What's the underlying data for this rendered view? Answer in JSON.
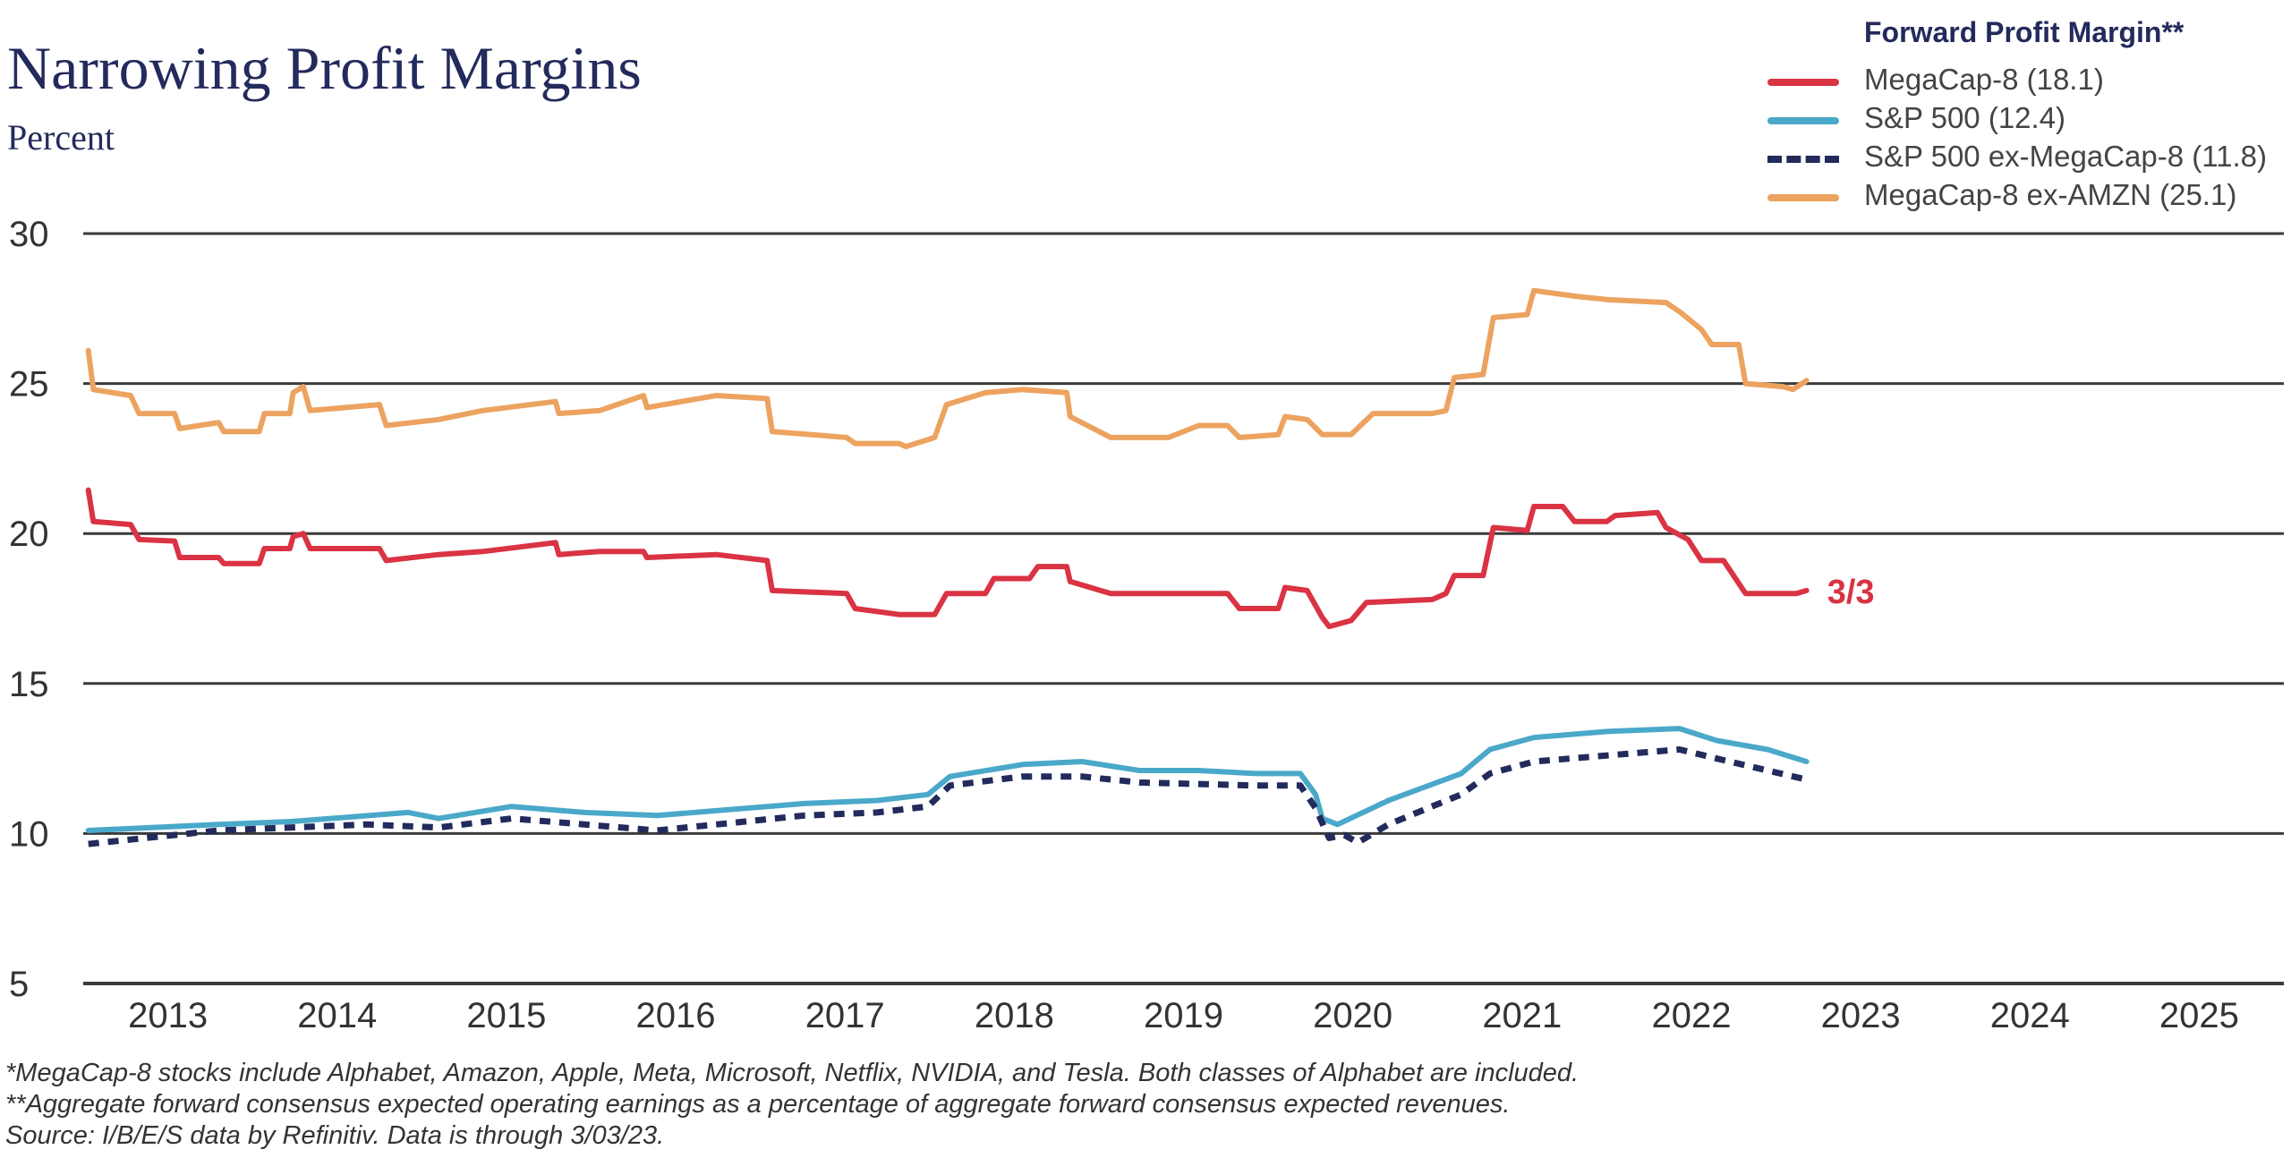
{
  "header": {
    "title": "Narrowing Profit Margins",
    "subtitle": "Percent"
  },
  "legend": {
    "title": "Forward Profit Margin**",
    "items": [
      {
        "label": "MegaCap-8 (18.1)",
        "color": "#d93344",
        "style": "solid"
      },
      {
        "label": "S&P 500 (12.4)",
        "color": "#4aa8c9",
        "style": "solid"
      },
      {
        "label": "S&P 500 ex-MegaCap-8 (11.8)",
        "color": "#232a5c",
        "style": "dashed"
      },
      {
        "label": "MegaCap-8 ex-AMZN (25.1)",
        "color": "#eca360",
        "style": "solid"
      }
    ]
  },
  "footnotes": [
    "*MegaCap-8 stocks include Alphabet, Amazon, Apple, Meta, Microsoft, Netflix, NVIDIA, and Tesla. Both classes of Alphabet are included.",
    "**Aggregate forward consensus expected operating earnings as a percentage of aggregate forward consensus expected revenues.",
    "Source: I/B/E/S data by Refinitiv. Data is through 3/03/23."
  ],
  "chart_data": {
    "type": "line",
    "title": "Narrowing Profit Margins",
    "ylabel": "Percent",
    "xlabel": "",
    "xlim": [
      2013,
      2026
    ],
    "ylim": [
      5,
      30
    ],
    "yticks": [
      5,
      10,
      15,
      20,
      25,
      30
    ],
    "xtick_labels": [
      "2013",
      "2014",
      "2015",
      "2016",
      "2017",
      "2018",
      "2019",
      "2020",
      "2021",
      "2022",
      "2023",
      "2024",
      "2025"
    ],
    "grid": true,
    "legend_position": "top-right",
    "annotation": {
      "text": "3/3",
      "x": 2023.17,
      "y": 18.1,
      "color": "#d93344"
    },
    "series": [
      {
        "name": "MegaCap-8 ex-AMZN",
        "color": "#eca360",
        "style": "solid",
        "x": [
          2013.03,
          2013.06,
          2013.28,
          2013.33,
          2013.54,
          2013.57,
          2013.8,
          2013.83,
          2014.04,
          2014.07,
          2014.22,
          2014.24,
          2014.3,
          2014.34,
          2014.75,
          2014.79,
          2015.1,
          2015.36,
          2015.79,
          2015.81,
          2016.05,
          2016.31,
          2016.33,
          2016.74,
          2017.04,
          2017.07,
          2017.51,
          2017.56,
          2017.82,
          2017.86,
          2018.03,
          2018.1,
          2018.33,
          2018.55,
          2018.81,
          2018.83,
          2019.07,
          2019.41,
          2019.59,
          2019.76,
          2019.83,
          2020.06,
          2020.1,
          2020.23,
          2020.32,
          2020.49,
          2020.62,
          2020.97,
          2021.05,
          2021.1,
          2021.27,
          2021.33,
          2021.53,
          2021.57,
          2021.83,
          2022.0,
          2022.35,
          2022.43,
          2022.56,
          2022.62,
          2022.78,
          2022.82,
          2023.04,
          2023.1,
          2023.18
        ],
        "values": [
          26.1,
          24.8,
          24.6,
          24.0,
          24.0,
          23.5,
          23.7,
          23.4,
          23.4,
          24.0,
          24.0,
          24.7,
          24.9,
          24.1,
          24.3,
          23.6,
          23.8,
          24.1,
          24.4,
          24.0,
          24.1,
          24.6,
          24.2,
          24.6,
          24.5,
          23.4,
          23.2,
          23.0,
          23.0,
          22.9,
          23.2,
          24.3,
          24.7,
          24.8,
          24.7,
          23.9,
          23.2,
          23.2,
          23.6,
          23.6,
          23.2,
          23.3,
          23.9,
          23.8,
          23.3,
          23.3,
          24.0,
          24.0,
          24.1,
          25.2,
          25.3,
          27.2,
          27.3,
          28.1,
          27.9,
          27.8,
          27.7,
          27.4,
          26.8,
          26.3,
          26.3,
          25.0,
          24.9,
          24.8,
          25.1
        ]
      },
      {
        "name": "MegaCap-8",
        "color": "#d93344",
        "style": "solid",
        "x": [
          2013.03,
          2013.06,
          2013.28,
          2013.33,
          2013.54,
          2013.57,
          2013.8,
          2013.83,
          2014.04,
          2014.07,
          2014.22,
          2014.24,
          2014.3,
          2014.34,
          2014.75,
          2014.79,
          2015.1,
          2015.36,
          2015.79,
          2015.81,
          2016.05,
          2016.31,
          2016.33,
          2016.74,
          2017.04,
          2017.07,
          2017.51,
          2017.56,
          2017.82,
          2018.03,
          2018.1,
          2018.33,
          2018.38,
          2018.59,
          2018.64,
          2018.81,
          2018.83,
          2019.07,
          2019.41,
          2019.59,
          2019.76,
          2019.83,
          2020.06,
          2020.1,
          2020.23,
          2020.32,
          2020.36,
          2020.49,
          2020.58,
          2020.97,
          2021.05,
          2021.1,
          2021.27,
          2021.33,
          2021.53,
          2021.57,
          2021.74,
          2021.81,
          2022.0,
          2022.05,
          2022.3,
          2022.35,
          2022.48,
          2022.56,
          2022.69,
          2022.82,
          2023.04,
          2023.12,
          2023.18
        ],
        "values": [
          21.45,
          20.4,
          20.3,
          19.8,
          19.75,
          19.2,
          19.2,
          19.0,
          19.0,
          19.5,
          19.5,
          19.9,
          20.0,
          19.5,
          19.5,
          19.1,
          19.3,
          19.4,
          19.7,
          19.3,
          19.4,
          19.4,
          19.2,
          19.3,
          19.1,
          18.1,
          18.0,
          17.5,
          17.3,
          17.3,
          18.0,
          18.0,
          18.5,
          18.5,
          18.9,
          18.9,
          18.4,
          18.0,
          18.0,
          18.0,
          18.0,
          17.5,
          17.5,
          18.2,
          18.1,
          17.2,
          16.9,
          17.1,
          17.7,
          17.8,
          18.0,
          18.6,
          18.6,
          20.2,
          20.1,
          20.9,
          20.9,
          20.4,
          20.4,
          20.6,
          20.7,
          20.2,
          19.8,
          19.1,
          19.1,
          18.0,
          18.0,
          18.0,
          18.1
        ]
      },
      {
        "name": "S&P 500",
        "color": "#4aa8c9",
        "style": "solid",
        "x": [
          2013.03,
          2013.8,
          2014.23,
          2014.92,
          2015.1,
          2015.53,
          2015.96,
          2016.39,
          2016.82,
          2017.26,
          2017.69,
          2017.99,
          2018.12,
          2018.55,
          2018.9,
          2019.24,
          2019.59,
          2019.93,
          2020.19,
          2020.28,
          2020.32,
          2020.41,
          2020.71,
          2021.14,
          2021.31,
          2021.57,
          2022.0,
          2022.43,
          2022.65,
          2022.95,
          2023.18
        ],
        "values": [
          10.1,
          10.3,
          10.4,
          10.7,
          10.5,
          10.9,
          10.7,
          10.6,
          10.8,
          11.0,
          11.1,
          11.3,
          11.9,
          12.3,
          12.4,
          12.1,
          12.1,
          12.0,
          12.0,
          11.3,
          10.5,
          10.3,
          11.1,
          12.0,
          12.8,
          13.2,
          13.4,
          13.5,
          13.1,
          12.8,
          12.4
        ]
      },
      {
        "name": "S&P 500 ex-MegaCap-8",
        "color": "#232a5c",
        "style": "dashed",
        "x": [
          2013.03,
          2013.37,
          2013.8,
          2014.67,
          2015.1,
          2015.53,
          2016.39,
          2017.26,
          2017.69,
          2017.99,
          2018.12,
          2018.55,
          2018.9,
          2019.24,
          2019.93,
          2020.19,
          2020.28,
          2020.36,
          2020.45,
          2020.53,
          2020.71,
          2021.14,
          2021.31,
          2021.57,
          2022.0,
          2022.43,
          2022.65,
          2022.95,
          2023.18
        ],
        "values": [
          9.65,
          9.85,
          10.1,
          10.3,
          10.2,
          10.5,
          10.1,
          10.6,
          10.7,
          10.9,
          11.6,
          11.9,
          11.9,
          11.7,
          11.6,
          11.6,
          10.85,
          9.85,
          9.95,
          9.7,
          10.3,
          11.3,
          12.0,
          12.4,
          12.6,
          12.8,
          12.5,
          12.1,
          11.8
        ]
      }
    ]
  }
}
